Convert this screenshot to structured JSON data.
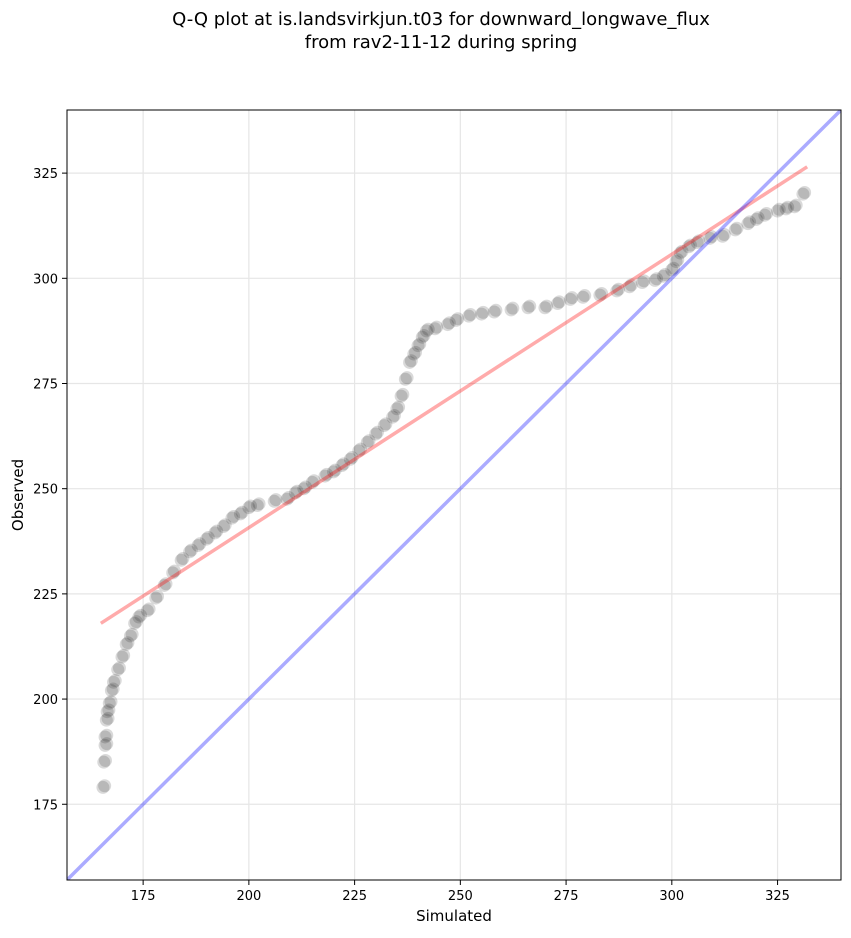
{
  "chart_data": {
    "type": "scatter",
    "title_line1": "Q-Q plot at is.landsvirkjun.t03 for downward_longwave_flux",
    "title_line2": "from rav2-11-12 during spring",
    "xlabel": "Simulated",
    "ylabel": "Observed",
    "xlim": [
      157,
      340
    ],
    "ylim": [
      157,
      340
    ],
    "xticks": [
      175,
      200,
      225,
      250,
      275,
      300,
      325
    ],
    "yticks": [
      175,
      200,
      225,
      250,
      275,
      300,
      325
    ],
    "grid": true,
    "points_color": "#000000",
    "fit_line": {
      "color": "#ff0000",
      "x": [
        165,
        332
      ],
      "y": [
        218,
        326.5
      ]
    },
    "identity_line": {
      "color": "#0000ff",
      "x": [
        157,
        340
      ],
      "y": [
        157,
        340
      ]
    },
    "points": [
      [
        165.5,
        179
      ],
      [
        165.7,
        185
      ],
      [
        166,
        189
      ],
      [
        166,
        191
      ],
      [
        166.3,
        195
      ],
      [
        166.5,
        197
      ],
      [
        167,
        199
      ],
      [
        167.5,
        202
      ],
      [
        168,
        204
      ],
      [
        169,
        207
      ],
      [
        170,
        210
      ],
      [
        171,
        213
      ],
      [
        172,
        215
      ],
      [
        173,
        218
      ],
      [
        174,
        219.5
      ],
      [
        176,
        221
      ],
      [
        178,
        224
      ],
      [
        180,
        227
      ],
      [
        182,
        230
      ],
      [
        184,
        233
      ],
      [
        186,
        235
      ],
      [
        188,
        236.5
      ],
      [
        190,
        238
      ],
      [
        192,
        239.5
      ],
      [
        194,
        241
      ],
      [
        196,
        243
      ],
      [
        198,
        244
      ],
      [
        200,
        245.5
      ],
      [
        202,
        246
      ],
      [
        206,
        247
      ],
      [
        209,
        247.5
      ],
      [
        211,
        249
      ],
      [
        213,
        250
      ],
      [
        215,
        251.5
      ],
      [
        218,
        253
      ],
      [
        220,
        254
      ],
      [
        222,
        255.5
      ],
      [
        224,
        257
      ],
      [
        226,
        259
      ],
      [
        228,
        261
      ],
      [
        230,
        263
      ],
      [
        232,
        265
      ],
      [
        234,
        267
      ],
      [
        235,
        269
      ],
      [
        236,
        272
      ],
      [
        237,
        276
      ],
      [
        238,
        280
      ],
      [
        239,
        282
      ],
      [
        240,
        284
      ],
      [
        241,
        286
      ],
      [
        242,
        287.5
      ],
      [
        244,
        288
      ],
      [
        247,
        289
      ],
      [
        249,
        290
      ],
      [
        252,
        291
      ],
      [
        255,
        291.5
      ],
      [
        258,
        292
      ],
      [
        262,
        292.5
      ],
      [
        266,
        293
      ],
      [
        270,
        293
      ],
      [
        273,
        294
      ],
      [
        276,
        295
      ],
      [
        279,
        295.5
      ],
      [
        283,
        296
      ],
      [
        287,
        297
      ],
      [
        290,
        298
      ],
      [
        293,
        299
      ],
      [
        296,
        299.5
      ],
      [
        298,
        300.5
      ],
      [
        300,
        302
      ],
      [
        301,
        304
      ],
      [
        302,
        306
      ],
      [
        304,
        307.5
      ],
      [
        306,
        308.5
      ],
      [
        309,
        309.5
      ],
      [
        312,
        310
      ],
      [
        315,
        311.5
      ],
      [
        318,
        313
      ],
      [
        320,
        314
      ],
      [
        322,
        315
      ],
      [
        325,
        316
      ],
      [
        327,
        316.5
      ],
      [
        329,
        317
      ],
      [
        331,
        320
      ]
    ]
  }
}
